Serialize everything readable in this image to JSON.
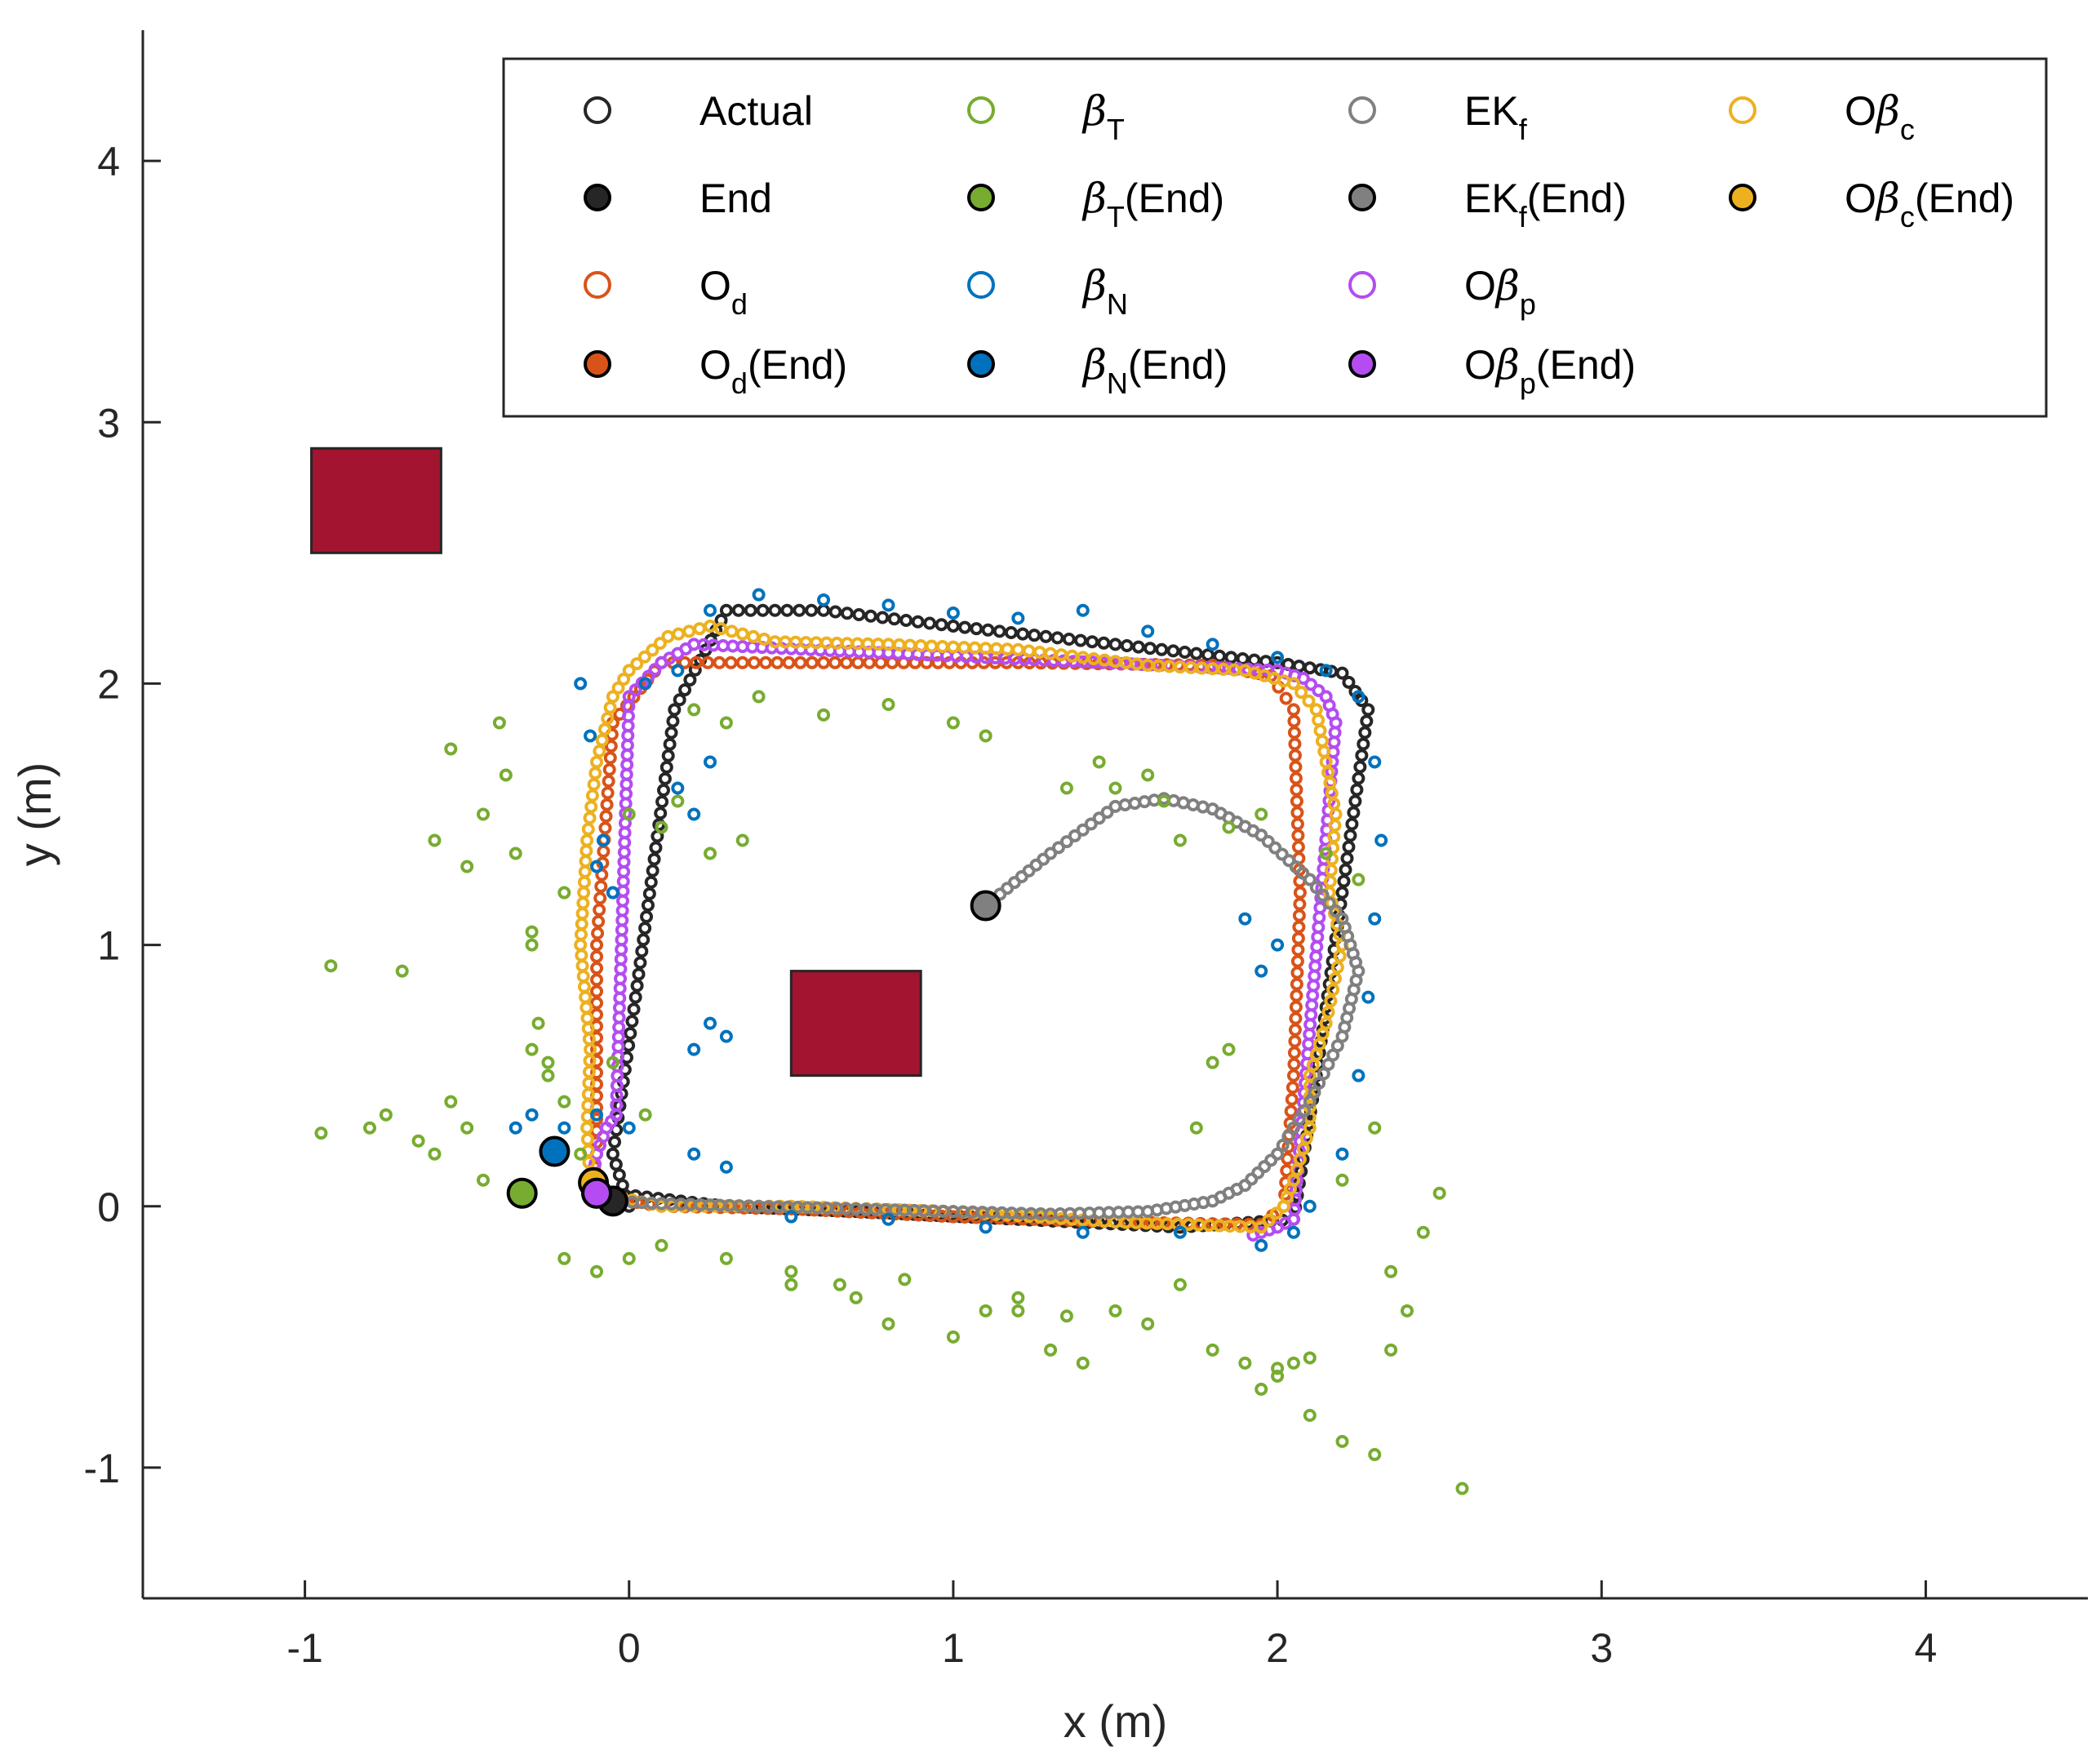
{
  "chart_data": {
    "type": "scatter",
    "xlabel": "x (m)",
    "ylabel": "y (m)",
    "xlim": [
      -1.5,
      4.5
    ],
    "ylim": [
      -1.5,
      4.5
    ],
    "xticks": [
      -1,
      0,
      1,
      2,
      3,
      4
    ],
    "yticks": [
      -1,
      0,
      1,
      2,
      3,
      4
    ],
    "xtick_labels": [
      "-1",
      "0",
      "1",
      "2",
      "3",
      "4"
    ],
    "ytick_labels": [
      "-1",
      "0",
      "1",
      "2",
      "3",
      "4"
    ],
    "grid": false,
    "legend_position": "top-right",
    "colors": {
      "actual": "#262626",
      "od": "#D95319",
      "betaT": "#77AC30",
      "betaN": "#0072BD",
      "ekf": "#808080",
      "obp": "#B44CF2",
      "obc": "#EDB120",
      "obstacle": "#A2142F"
    },
    "obstacles": [
      {
        "x": [
          -0.98,
          -0.58
        ],
        "y": [
          2.5,
          2.9
        ]
      },
      {
        "x": [
          0.5,
          0.9
        ],
        "y": [
          0.5,
          0.9
        ]
      }
    ],
    "series": [
      {
        "key": "actual",
        "x": [
          0.0,
          -0.05,
          0.02,
          0.14,
          0.3,
          0.6,
          1.0,
          1.5,
          2.0,
          2.2,
          2.28,
          2.2,
          2.12,
          2.05,
          1.7,
          1.2,
          0.7,
          0.3,
          -0.05,
          -0.1
        ],
        "y": [
          0.0,
          0.2,
          0.8,
          1.9,
          2.28,
          2.28,
          2.22,
          2.15,
          2.08,
          2.04,
          1.9,
          1.2,
          0.5,
          -0.05,
          -0.08,
          -0.05,
          -0.02,
          0.0,
          0.05,
          0.0
        ]
      },
      {
        "key": "od",
        "x": [
          -0.12,
          -0.1,
          -0.1,
          -0.05,
          0.1,
          0.6,
          1.2,
          1.8,
          1.98,
          2.05,
          2.07,
          2.05,
          2.02,
          1.95,
          1.5,
          1.0,
          0.5,
          0.1,
          -0.05,
          -0.1,
          -0.11
        ],
        "y": [
          0.05,
          0.2,
          1.0,
          1.85,
          2.08,
          2.08,
          2.08,
          2.07,
          2.03,
          1.9,
          1.2,
          0.5,
          0.0,
          -0.07,
          -0.06,
          -0.04,
          -0.01,
          0.0,
          0.03,
          0.05,
          0.05
        ]
      },
      {
        "key": "obp",
        "x": [
          -0.12,
          -0.1,
          -0.07,
          -0.04,
          0.0,
          0.1,
          0.2,
          2.0,
          2.08,
          2.15,
          2.18,
          2.05,
          2.0,
          1.95,
          1.9
        ],
        "y": [
          0.05,
          0.2,
          0.3,
          0.35,
          1.95,
          2.08,
          2.15,
          2.05,
          2.02,
          1.95,
          1.85,
          -0.05,
          -0.08,
          -0.1,
          -0.12
        ]
      },
      {
        "key": "obc",
        "x": [
          -0.12,
          -0.13,
          -0.12,
          -0.15,
          -0.13,
          -0.1,
          -0.05,
          0.0,
          0.12,
          0.25,
          0.45,
          0.8,
          1.2,
          1.6,
          1.9,
          2.05,
          2.12,
          2.15,
          2.18,
          2.16,
          2.2,
          2.15,
          2.1,
          2.1,
          2.05,
          2.02,
          1.95,
          1.5,
          1.0,
          0.5,
          0.1,
          -0.05,
          -0.12
        ],
        "y": [
          0.08,
          0.3,
          0.6,
          1.0,
          1.4,
          1.7,
          1.95,
          2.05,
          2.18,
          2.22,
          2.16,
          2.15,
          2.13,
          2.07,
          2.05,
          2.0,
          1.9,
          1.7,
          1.5,
          1.2,
          1.0,
          0.7,
          0.5,
          0.3,
          0.1,
          0.0,
          -0.08,
          -0.06,
          -0.02,
          0.0,
          0.0,
          0.04,
          0.08
        ]
      },
      {
        "key": "ekf",
        "x": [
          1.1,
          1.3,
          1.5,
          1.65,
          1.8,
          1.95,
          2.1,
          2.2,
          2.25,
          2.2,
          2.1,
          2.0,
          1.9,
          1.8,
          1.6,
          1.3,
          1.0,
          0.7,
          0.4,
          0.1,
          -0.05
        ],
        "y": [
          1.15,
          1.35,
          1.53,
          1.56,
          1.52,
          1.42,
          1.25,
          1.1,
          0.9,
          0.65,
          0.4,
          0.2,
          0.08,
          0.02,
          -0.02,
          -0.03,
          -0.02,
          -0.01,
          0.0,
          0.01,
          0.02
        ]
      },
      {
        "key": "betaN",
        "x": [
          -0.15,
          -0.12,
          -0.08,
          0.05,
          0.15,
          0.25,
          0.4,
          0.6,
          0.8,
          1.0,
          1.2,
          1.4,
          1.6,
          1.8,
          2.0,
          2.15,
          2.25,
          2.3,
          2.32,
          2.3,
          2.28,
          2.25,
          2.2,
          2.1,
          2.05,
          1.95,
          1.7,
          1.4,
          1.1,
          0.8,
          0.5,
          0.2,
          0.0,
          -0.1,
          -0.2,
          -0.3,
          -0.35,
          0.15,
          0.2,
          0.25,
          0.3,
          1.9,
          1.95,
          2.0,
          0.2,
          0.25,
          0.3,
          -0.1,
          -0.05
        ],
        "y": [
          2.0,
          1.8,
          1.4,
          2.0,
          2.05,
          2.28,
          2.34,
          2.32,
          2.3,
          2.27,
          2.25,
          2.28,
          2.2,
          2.15,
          2.1,
          2.05,
          1.95,
          1.7,
          1.4,
          1.1,
          0.8,
          0.5,
          0.2,
          0.0,
          -0.1,
          -0.15,
          -0.1,
          -0.1,
          -0.08,
          -0.05,
          -0.04,
          0.2,
          0.3,
          0.35,
          0.3,
          0.35,
          0.3,
          1.6,
          1.5,
          1.7,
          0.15,
          1.1,
          0.9,
          1.0,
          0.6,
          0.7,
          0.65,
          1.3,
          1.2
        ]
      },
      {
        "key": "betaT",
        "x": [
          -0.92,
          -0.95,
          -0.75,
          -0.7,
          -0.6,
          -0.55,
          -0.5,
          -0.45,
          -0.4,
          -0.38,
          -0.35,
          -0.3,
          -0.28,
          -0.25,
          -0.2,
          -0.15,
          -0.5,
          -0.6,
          -0.55,
          -0.45,
          -0.35,
          -0.2,
          -0.1,
          0.0,
          0.1,
          0.3,
          0.5,
          0.7,
          0.8,
          1.0,
          1.1,
          1.2,
          1.3,
          1.4,
          1.5,
          1.6,
          1.7,
          1.8,
          1.9,
          2.0,
          2.1,
          2.2,
          2.3,
          2.35,
          2.4,
          2.45,
          2.5,
          2.57,
          2.2,
          2.3,
          2.35,
          2.1,
          2.05,
          2.0,
          1.95,
          1.85,
          1.8,
          1.75,
          1.5,
          1.6,
          1.65,
          1.7,
          1.45,
          1.35,
          0.2,
          0.3,
          0.4,
          0.6,
          0.8,
          1.0,
          1.1,
          -0.2,
          -0.3,
          0.0,
          0.1,
          0.15,
          0.25,
          0.35,
          0.5,
          0.65,
          0.85,
          1.2,
          1.35,
          1.85,
          1.95,
          2.15,
          2.25,
          -0.05,
          0.05,
          -0.8,
          -0.65,
          -0.3,
          -0.25
        ],
        "y": [
          0.92,
          0.28,
          0.35,
          0.9,
          1.4,
          1.75,
          1.3,
          1.5,
          1.85,
          1.65,
          1.35,
          1.0,
          0.7,
          0.5,
          0.4,
          0.2,
          0.3,
          0.2,
          0.4,
          0.1,
          0.05,
          -0.2,
          -0.25,
          -0.2,
          -0.15,
          -0.2,
          -0.3,
          -0.35,
          -0.45,
          -0.5,
          -0.4,
          -0.35,
          -0.55,
          -0.6,
          -0.4,
          -0.45,
          -0.3,
          -0.55,
          -0.6,
          -0.65,
          -0.8,
          -0.9,
          -0.95,
          -0.55,
          -0.4,
          -0.1,
          0.05,
          -1.08,
          0.1,
          0.3,
          -0.25,
          -0.58,
          -0.6,
          -0.62,
          -0.7,
          0.6,
          0.55,
          0.3,
          1.6,
          1.65,
          1.55,
          1.4,
          1.7,
          1.6,
          1.9,
          1.85,
          1.95,
          1.88,
          1.92,
          1.85,
          1.8,
          1.2,
          1.05,
          1.5,
          1.45,
          1.55,
          1.35,
          1.4,
          -0.25,
          -0.3,
          -0.28,
          -0.4,
          -0.42,
          1.45,
          1.5,
          1.35,
          1.25,
          0.55,
          0.35,
          0.3,
          0.25,
          0.6,
          0.55
        ]
      }
    ],
    "end_markers": [
      {
        "key": "ekf",
        "x": 1.1,
        "y": 1.15
      },
      {
        "key": "betaT",
        "x": -0.33,
        "y": 0.05
      },
      {
        "key": "betaN",
        "x": -0.23,
        "y": 0.21
      },
      {
        "key": "obc",
        "x": -0.11,
        "y": 0.09
      },
      {
        "key": "actual",
        "x": -0.05,
        "y": 0.02
      },
      {
        "key": "od",
        "x": -0.1,
        "y": 0.05
      },
      {
        "key": "obp",
        "x": -0.1,
        "y": 0.05
      }
    ],
    "legend": [
      {
        "key": "actual",
        "filled": false,
        "label": "Actual",
        "sub": "",
        "suffix": ""
      },
      {
        "key": "actual",
        "filled": true,
        "label": "End",
        "sub": "",
        "suffix": ""
      },
      {
        "key": "od",
        "filled": false,
        "label": "O",
        "sub": "d",
        "suffix": ""
      },
      {
        "key": "od",
        "filled": true,
        "label": "O",
        "sub": "d",
        "suffix": "(End)"
      },
      {
        "key": "betaT",
        "filled": false,
        "label": "β",
        "sub": "T",
        "suffix": ""
      },
      {
        "key": "betaT",
        "filled": true,
        "label": "β",
        "sub": "T",
        "suffix": "(End)"
      },
      {
        "key": "betaN",
        "filled": false,
        "label": "β",
        "sub": "N",
        "suffix": ""
      },
      {
        "key": "betaN",
        "filled": true,
        "label": "β",
        "sub": "N",
        "suffix": "(End)"
      },
      {
        "key": "ekf",
        "filled": false,
        "label": "EK",
        "sub": "f",
        "suffix": ""
      },
      {
        "key": "ekf",
        "filled": true,
        "label": "EK",
        "sub": "f",
        "suffix": "(End)"
      },
      {
        "key": "obp",
        "filled": false,
        "label": "Oβ",
        "sub": "p",
        "suffix": ""
      },
      {
        "key": "obp",
        "filled": true,
        "label": "Oβ",
        "sub": "p",
        "suffix": "(End)"
      },
      {
        "key": "obc",
        "filled": false,
        "label": "Oβ",
        "sub": "c",
        "suffix": ""
      },
      {
        "key": "obc",
        "filled": true,
        "label": "Oβ",
        "sub": "c",
        "suffix": "(End)"
      }
    ]
  }
}
